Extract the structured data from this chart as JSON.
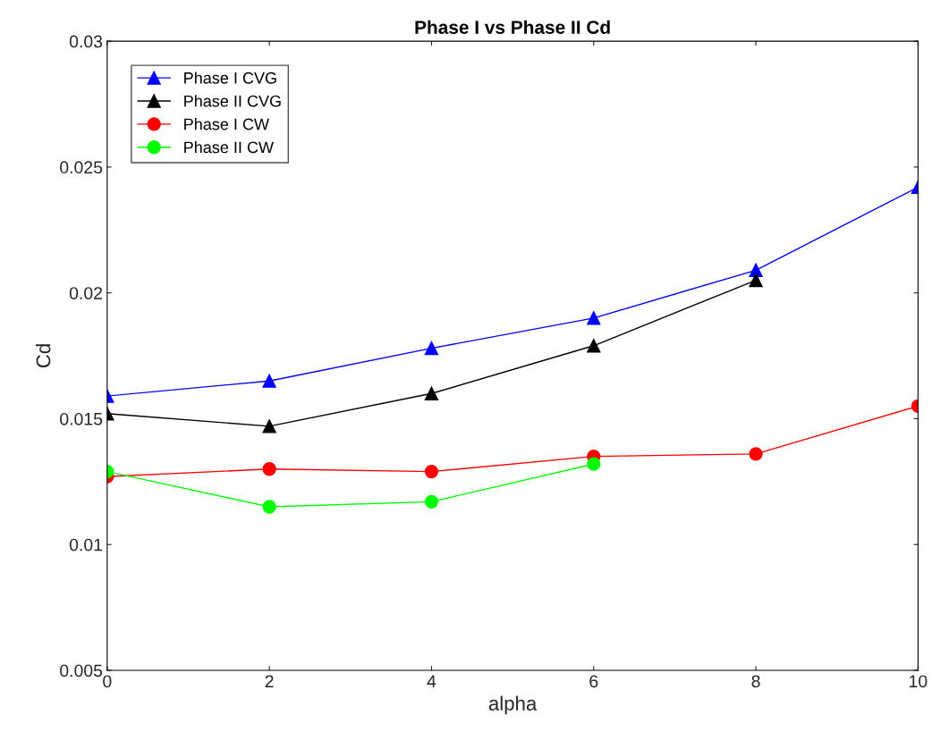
{
  "chart_data": {
    "type": "line",
    "title": "Phase I vs Phase II Cd",
    "xlabel": "alpha",
    "ylabel": "Cd",
    "x": [
      0,
      2,
      4,
      6,
      8,
      10
    ],
    "series": [
      {
        "name": "Phase I CVG",
        "color": "#0000ff",
        "marker": "triangle",
        "values": [
          0.0159,
          0.0165,
          0.0178,
          0.019,
          0.0209,
          0.0242
        ]
      },
      {
        "name": "Phase II CVG",
        "color": "#000000",
        "marker": "triangle",
        "values": [
          0.0152,
          0.0147,
          0.016,
          0.0179,
          0.0205,
          null
        ]
      },
      {
        "name": "Phase I CW",
        "color": "#ff0000",
        "marker": "circle",
        "values": [
          0.0127,
          0.013,
          0.0129,
          0.0135,
          0.0136,
          0.0155
        ]
      },
      {
        "name": "Phase II CW",
        "color": "#00ff00",
        "marker": "circle",
        "values": [
          0.0129,
          0.0115,
          0.0117,
          0.0132,
          null,
          null
        ]
      }
    ],
    "xlim": [
      0,
      10
    ],
    "xticks": [
      0,
      2,
      4,
      6,
      8,
      10
    ],
    "ylim": [
      0.005,
      0.03
    ],
    "yticks": [
      {
        "value": 0.005,
        "label": "0.005"
      },
      {
        "value": 0.01,
        "label": "0.01"
      },
      {
        "value": 0.015,
        "label": "0.015"
      },
      {
        "value": 0.02,
        "label": "0.02"
      },
      {
        "value": 0.025,
        "label": "0.025"
      },
      {
        "value": 0.03,
        "label": "0.03"
      }
    ],
    "legend": "top left",
    "grid": false,
    "line_style": "solid"
  }
}
